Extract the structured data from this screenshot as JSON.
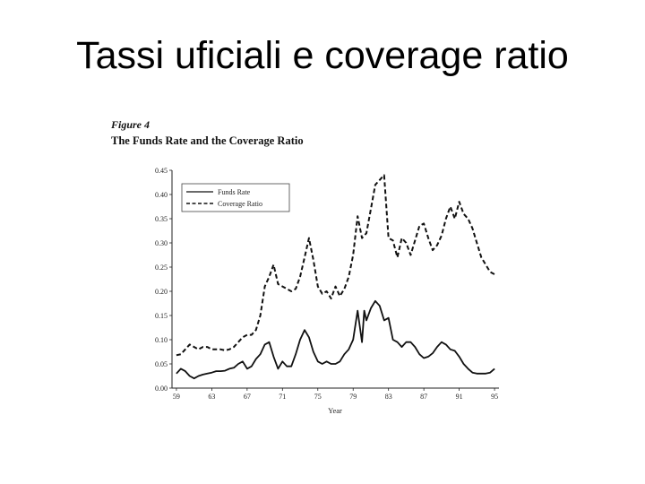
{
  "slide": {
    "title": "Tassi uficiali e coverage ratio"
  },
  "figure": {
    "label": "Figure 4",
    "title": "The Funds Rate and the Coverage Ratio"
  },
  "chart_data": {
    "type": "line",
    "title": "The Funds Rate and the Coverage Ratio",
    "xlabel": "Year",
    "ylabel": "",
    "xlim": [
      1958.5,
      1995.5
    ],
    "ylim": [
      0,
      0.45
    ],
    "x_ticks": [
      {
        "value": 1959,
        "label": "59"
      },
      {
        "value": 1963,
        "label": "63"
      },
      {
        "value": 1967,
        "label": "67"
      },
      {
        "value": 1971,
        "label": "71"
      },
      {
        "value": 1975,
        "label": "75"
      },
      {
        "value": 1979,
        "label": "79"
      },
      {
        "value": 1983,
        "label": "83"
      },
      {
        "value": 1987,
        "label": "87"
      },
      {
        "value": 1991,
        "label": "91"
      },
      {
        "value": 1995,
        "label": "95"
      }
    ],
    "y_ticks": [
      {
        "value": 0.0,
        "label": "0.00"
      },
      {
        "value": 0.05,
        "label": "0.05"
      },
      {
        "value": 0.1,
        "label": "0.10"
      },
      {
        "value": 0.15,
        "label": "0.15"
      },
      {
        "value": 0.2,
        "label": "0.20"
      },
      {
        "value": 0.25,
        "label": "0.25"
      },
      {
        "value": 0.3,
        "label": "0.30"
      },
      {
        "value": 0.35,
        "label": "0.35"
      },
      {
        "value": 0.4,
        "label": "0.40"
      },
      {
        "value": 0.45,
        "label": "0.45"
      }
    ],
    "legend_position": "top-left",
    "grid": false,
    "series": [
      {
        "name": "Funds Rate",
        "style": "solid",
        "color": "#111111",
        "x": [
          1959.0,
          1959.5,
          1960.0,
          1960.5,
          1961.0,
          1961.5,
          1962.0,
          1962.5,
          1963.0,
          1963.5,
          1964.0,
          1964.5,
          1965.0,
          1965.5,
          1966.0,
          1966.5,
          1967.0,
          1967.5,
          1968.0,
          1968.5,
          1969.0,
          1969.5,
          1970.0,
          1970.5,
          1971.0,
          1971.5,
          1972.0,
          1972.5,
          1973.0,
          1973.5,
          1974.0,
          1974.5,
          1975.0,
          1975.5,
          1976.0,
          1976.5,
          1977.0,
          1977.5,
          1978.0,
          1978.5,
          1979.0,
          1979.5,
          1980.0,
          1980.25,
          1980.5,
          1981.0,
          1981.5,
          1982.0,
          1982.5,
          1983.0,
          1983.5,
          1984.0,
          1984.5,
          1985.0,
          1985.5,
          1986.0,
          1986.5,
          1987.0,
          1987.5,
          1988.0,
          1988.5,
          1989.0,
          1989.5,
          1990.0,
          1990.5,
          1991.0,
          1991.5,
          1992.0,
          1992.5,
          1993.0,
          1993.5,
          1994.0,
          1994.5,
          1995.0
        ],
        "values": [
          0.03,
          0.04,
          0.035,
          0.025,
          0.02,
          0.025,
          0.028,
          0.03,
          0.032,
          0.035,
          0.035,
          0.036,
          0.04,
          0.042,
          0.05,
          0.055,
          0.04,
          0.045,
          0.06,
          0.07,
          0.09,
          0.095,
          0.065,
          0.04,
          0.055,
          0.045,
          0.045,
          0.07,
          0.1,
          0.12,
          0.105,
          0.075,
          0.055,
          0.05,
          0.055,
          0.05,
          0.05,
          0.055,
          0.07,
          0.08,
          0.1,
          0.16,
          0.095,
          0.16,
          0.14,
          0.165,
          0.18,
          0.17,
          0.14,
          0.145,
          0.1,
          0.095,
          0.085,
          0.095,
          0.095,
          0.085,
          0.07,
          0.062,
          0.065,
          0.072,
          0.085,
          0.095,
          0.09,
          0.08,
          0.077,
          0.065,
          0.05,
          0.04,
          0.032,
          0.03,
          0.03,
          0.03,
          0.032,
          0.04
        ]
      },
      {
        "name": "Coverage Ratio",
        "style": "dashed",
        "color": "#111111",
        "x": [
          1959.0,
          1959.5,
          1960.0,
          1960.5,
          1961.0,
          1961.5,
          1962.0,
          1962.5,
          1963.0,
          1963.5,
          1964.0,
          1964.5,
          1965.0,
          1965.5,
          1966.0,
          1966.5,
          1967.0,
          1967.5,
          1968.0,
          1968.5,
          1969.0,
          1969.5,
          1970.0,
          1970.5,
          1971.0,
          1971.5,
          1972.0,
          1972.5,
          1973.0,
          1973.5,
          1974.0,
          1974.5,
          1975.0,
          1975.5,
          1976.0,
          1976.5,
          1977.0,
          1977.5,
          1978.0,
          1978.5,
          1979.0,
          1979.5,
          1980.0,
          1980.5,
          1981.0,
          1981.5,
          1982.0,
          1982.5,
          1983.0,
          1983.5,
          1984.0,
          1984.5,
          1985.0,
          1985.5,
          1986.0,
          1986.5,
          1987.0,
          1987.5,
          1988.0,
          1988.5,
          1989.0,
          1989.5,
          1990.0,
          1990.5,
          1991.0,
          1991.5,
          1992.0,
          1992.5,
          1993.0,
          1993.5,
          1994.0,
          1994.5,
          1995.0
        ],
        "values": [
          0.068,
          0.07,
          0.08,
          0.09,
          0.085,
          0.08,
          0.085,
          0.085,
          0.08,
          0.08,
          0.08,
          0.078,
          0.08,
          0.085,
          0.095,
          0.105,
          0.11,
          0.11,
          0.12,
          0.15,
          0.21,
          0.23,
          0.255,
          0.215,
          0.21,
          0.205,
          0.2,
          0.205,
          0.23,
          0.27,
          0.31,
          0.265,
          0.21,
          0.195,
          0.2,
          0.185,
          0.21,
          0.19,
          0.205,
          0.23,
          0.275,
          0.355,
          0.31,
          0.32,
          0.37,
          0.42,
          0.43,
          0.44,
          0.31,
          0.305,
          0.27,
          0.31,
          0.3,
          0.275,
          0.305,
          0.335,
          0.34,
          0.31,
          0.285,
          0.295,
          0.315,
          0.35,
          0.375,
          0.35,
          0.385,
          0.36,
          0.35,
          0.33,
          0.3,
          0.27,
          0.255,
          0.24,
          0.235
        ]
      }
    ]
  }
}
